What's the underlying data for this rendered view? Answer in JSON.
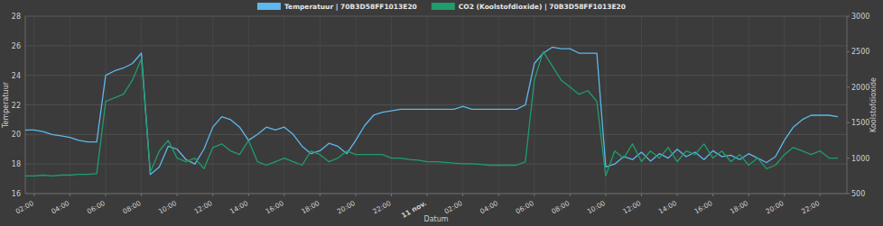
{
  "chart_data": {
    "type": "line",
    "xlabel": "Datum",
    "ylabel": "Temperatuur",
    "y2label": "Koolstofdioxide",
    "legend": "top",
    "grid": true,
    "x": [
      1.5,
      2,
      2.5,
      3,
      3.5,
      4,
      4.5,
      5,
      5.5,
      6,
      6.5,
      7,
      7.5,
      8,
      8.5,
      9,
      9.5,
      10,
      10.5,
      11,
      11.5,
      12,
      12.5,
      13,
      13.5,
      14,
      14.5,
      15,
      15.5,
      16,
      16.5,
      17,
      17.5,
      18,
      18.5,
      19,
      19.5,
      20,
      20.5,
      21,
      21.5,
      22,
      22.5,
      23,
      23.5,
      24,
      24.5,
      25,
      25.5,
      26,
      26.5,
      27,
      27.5,
      28,
      28.5,
      29,
      29.5,
      30,
      30.5,
      31,
      31.5,
      32,
      32.5,
      33,
      33.5,
      34,
      34.5,
      35,
      35.5,
      36,
      36.5,
      37,
      37.5,
      38,
      38.5,
      39,
      39.5,
      40,
      40.5,
      41,
      41.5,
      42,
      42.5,
      43,
      43.5,
      44,
      44.5,
      45,
      45.5,
      46,
      46.5,
      47
    ],
    "xlim": [
      1.5,
      47.5
    ],
    "xticks": [
      {
        "value": 2,
        "label": "02:00"
      },
      {
        "value": 4,
        "label": "04:00"
      },
      {
        "value": 6,
        "label": "06:00"
      },
      {
        "value": 8,
        "label": "08:00"
      },
      {
        "value": 10,
        "label": "10:00"
      },
      {
        "value": 12,
        "label": "12:00"
      },
      {
        "value": 14,
        "label": "14:00"
      },
      {
        "value": 16,
        "label": "16:00"
      },
      {
        "value": 18,
        "label": "18:00"
      },
      {
        "value": 20,
        "label": "20:00"
      },
      {
        "value": 22,
        "label": "22:00"
      },
      {
        "value": 24,
        "label": "11 nov."
      },
      {
        "value": 26,
        "label": "02:00"
      },
      {
        "value": 28,
        "label": "04:00"
      },
      {
        "value": 30,
        "label": "06:00"
      },
      {
        "value": 32,
        "label": "08:00"
      },
      {
        "value": 34,
        "label": "10:00"
      },
      {
        "value": 36,
        "label": "12:00"
      },
      {
        "value": 38,
        "label": "14:00"
      },
      {
        "value": 40,
        "label": "16:00"
      },
      {
        "value": 42,
        "label": "18:00"
      },
      {
        "value": 44,
        "label": "20:00"
      },
      {
        "value": 46,
        "label": "22:00"
      }
    ],
    "ylim": [
      16,
      28
    ],
    "yticks": [
      16,
      18,
      20,
      22,
      24,
      26,
      28
    ],
    "y2lim": [
      500,
      3000
    ],
    "y2ticks": [
      500,
      1000,
      1500,
      2000,
      2500,
      3000
    ],
    "series": [
      {
        "name": "Temperatuur | 70B3D58FF1013E20",
        "color": "#5cb8ee",
        "axis": "y",
        "values": [
          20.3,
          20.3,
          20.2,
          20.0,
          19.9,
          19.8,
          19.6,
          19.5,
          19.5,
          24.0,
          24.3,
          24.5,
          24.8,
          25.5,
          17.3,
          17.8,
          19.2,
          19.0,
          18.3,
          18.0,
          19.0,
          20.5,
          21.2,
          21.0,
          20.5,
          19.6,
          20.0,
          20.5,
          20.3,
          20.5,
          20.0,
          19.2,
          18.7,
          18.9,
          19.4,
          19.2,
          18.7,
          19.6,
          20.6,
          21.3,
          21.5,
          21.6,
          21.7,
          21.7,
          21.7,
          21.7,
          21.7,
          21.7,
          21.7,
          21.9,
          21.7,
          21.7,
          21.7,
          21.7,
          21.7,
          21.7,
          22.0,
          24.8,
          25.5,
          25.9,
          25.8,
          25.8,
          25.5,
          25.5,
          25.5,
          17.8,
          18.0,
          18.5,
          18.3,
          18.8,
          18.2,
          18.7,
          18.4,
          19.0,
          18.5,
          18.8,
          18.3,
          18.9,
          18.5,
          18.6,
          18.3,
          18.7,
          18.4,
          18.1,
          18.5,
          19.6,
          20.5,
          21.0,
          21.3,
          21.3,
          21.3,
          21.2
        ]
      },
      {
        "name": "CO2 (Koolstofdioxide) | 70B3D58FF1013E20",
        "color": "#1f9d6c",
        "axis": "y2",
        "values": [
          750,
          750,
          760,
          750,
          760,
          760,
          770,
          770,
          780,
          1800,
          1850,
          1900,
          2100,
          2400,
          800,
          1100,
          1250,
          1000,
          950,
          1000,
          850,
          1150,
          1200,
          1100,
          1050,
          1250,
          950,
          900,
          950,
          1000,
          950,
          900,
          1100,
          1050,
          950,
          1000,
          1100,
          1050,
          1050,
          1050,
          1050,
          1000,
          1000,
          980,
          970,
          950,
          950,
          940,
          930,
          920,
          920,
          910,
          900,
          900,
          900,
          900,
          950,
          2100,
          2500,
          2300,
          2100,
          2000,
          1900,
          1950,
          1800,
          750,
          1100,
          1000,
          1200,
          950,
          1100,
          1000,
          1150,
          950,
          1100,
          1050,
          1200,
          1000,
          1100,
          950,
          1050,
          900,
          1000,
          850,
          900,
          1050,
          1150,
          1100,
          1050,
          1100,
          1000,
          1000
        ]
      }
    ]
  }
}
